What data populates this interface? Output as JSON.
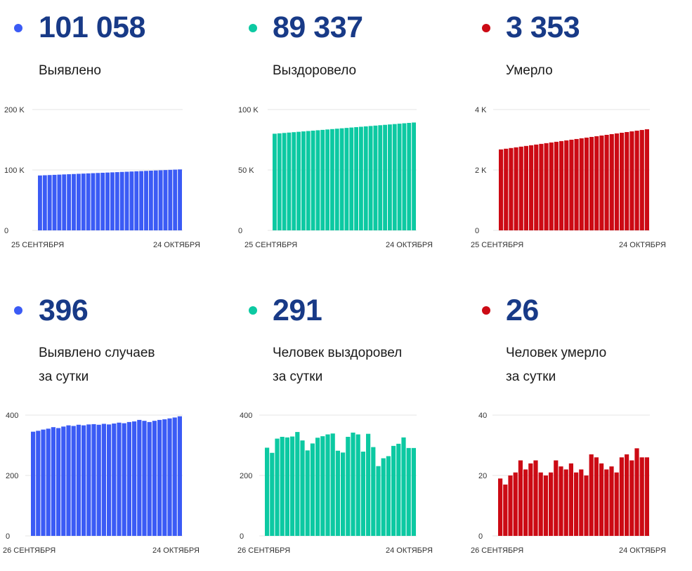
{
  "panels": [
    {
      "value": "101 058",
      "label_lines": [
        "Выявлено"
      ],
      "color": "#3b5bf5"
    },
    {
      "value": "89 337",
      "label_lines": [
        "Выздоровело"
      ],
      "color": "#0cc9a2"
    },
    {
      "value": "3 353",
      "label_lines": [
        "Умерло"
      ],
      "color": "#cc0a14"
    },
    {
      "value": "396",
      "label_lines": [
        "Выявлено случаев",
        "за сутки"
      ],
      "color": "#3b5bf5"
    },
    {
      "value": "291",
      "label_lines": [
        "Человек выздоровел",
        "за сутки"
      ],
      "color": "#0cc9a2"
    },
    {
      "value": "26",
      "label_lines": [
        "Человек умерло",
        "за сутки"
      ],
      "color": "#cc0a14"
    }
  ],
  "chart_data": [
    {
      "type": "bar",
      "color": "#3b5bf5",
      "ylim": [
        0,
        200000
      ],
      "yticks": [
        {
          "v": 0,
          "t": "0"
        },
        {
          "v": 100000,
          "t": "100 K"
        },
        {
          "v": 200000,
          "t": "200 K"
        }
      ],
      "x_start_label": "25 СЕНТЯБРЯ",
      "x_end_label": "24 ОКТЯБРЯ",
      "values": [
        90900,
        91245,
        91590,
        91935,
        92280,
        92625,
        92970,
        93315,
        93660,
        94005,
        94350,
        94695,
        95040,
        95385,
        95730,
        96075,
        96420,
        96765,
        97110,
        97455,
        97800,
        98145,
        98490,
        98835,
        99180,
        99525,
        99870,
        100215,
        100560,
        100905
      ]
    },
    {
      "type": "bar",
      "color": "#0cc9a2",
      "ylim": [
        0,
        100000
      ],
      "yticks": [
        {
          "v": 0,
          "t": "0"
        },
        {
          "v": 50000,
          "t": "50 K"
        },
        {
          "v": 100000,
          "t": "100 K"
        }
      ],
      "x_start_label": "25 СЕНТЯБРЯ",
      "x_end_label": "24 ОКТЯБРЯ",
      "values": [
        80000,
        80320,
        80640,
        80960,
        81280,
        81600,
        81920,
        82240,
        82560,
        82880,
        83200,
        83520,
        83840,
        84160,
        84480,
        84800,
        85120,
        85440,
        85760,
        86080,
        86400,
        86720,
        87040,
        87360,
        87680,
        88000,
        88320,
        88640,
        88960,
        89280
      ]
    },
    {
      "type": "bar",
      "color": "#cc0a14",
      "ylim": [
        0,
        4000
      ],
      "yticks": [
        {
          "v": 0,
          "t": "0"
        },
        {
          "v": 2000,
          "t": "2 K"
        },
        {
          "v": 4000,
          "t": "4 K"
        }
      ],
      "x_start_label": "25 СЕНТЯБРЯ",
      "x_end_label": "24 ОКТЯБРЯ",
      "values": [
        2680,
        2703,
        2726,
        2749,
        2772,
        2795,
        2818,
        2841,
        2864,
        2887,
        2910,
        2933,
        2956,
        2979,
        3002,
        3025,
        3048,
        3071,
        3094,
        3117,
        3140,
        3163,
        3186,
        3209,
        3232,
        3255,
        3278,
        3301,
        3324,
        3347
      ]
    },
    {
      "type": "bar",
      "color": "#3b5bf5",
      "ylim": [
        0,
        400
      ],
      "yticks": [
        {
          "v": 0,
          "t": "0"
        },
        {
          "v": 200,
          "t": "200"
        },
        {
          "v": 400,
          "t": "400"
        }
      ],
      "x_start_label": "26 СЕНТЯБРЯ",
      "x_end_label": "24 ОКТЯБРЯ",
      "values": [
        345,
        348,
        352,
        355,
        360,
        357,
        362,
        366,
        364,
        368,
        366,
        369,
        370,
        368,
        371,
        369,
        372,
        375,
        373,
        377,
        379,
        384,
        381,
        377,
        381,
        384,
        386,
        389,
        392,
        396
      ]
    },
    {
      "type": "bar",
      "color": "#0cc9a2",
      "ylim": [
        0,
        400
      ],
      "yticks": [
        {
          "v": 0,
          "t": "0"
        },
        {
          "v": 200,
          "t": "200"
        },
        {
          "v": 400,
          "t": "400"
        }
      ],
      "x_start_label": "26 СЕНТЯБРЯ",
      "x_end_label": "24 ОКТЯБРЯ",
      "values": [
        292,
        275,
        322,
        328,
        326,
        329,
        344,
        316,
        283,
        306,
        325,
        330,
        336,
        339,
        282,
        276,
        328,
        342,
        336,
        279,
        338,
        294,
        231,
        257,
        264,
        298,
        305,
        326,
        291,
        291
      ]
    },
    {
      "type": "bar",
      "color": "#cc0a14",
      "ylim": [
        0,
        40
      ],
      "yticks": [
        {
          "v": 0,
          "t": "0"
        },
        {
          "v": 20,
          "t": "20"
        },
        {
          "v": 40,
          "t": "40"
        }
      ],
      "x_start_label": "26 СЕНТЯБРЯ",
      "x_end_label": "24 ОКТЯБРЯ",
      "values": [
        19,
        17,
        20,
        21,
        25,
        22,
        24,
        25,
        21,
        20,
        21,
        25,
        23,
        22,
        24,
        21,
        22,
        20,
        27,
        26,
        24,
        22,
        23,
        21,
        26,
        27,
        25,
        29,
        26,
        26
      ]
    }
  ]
}
